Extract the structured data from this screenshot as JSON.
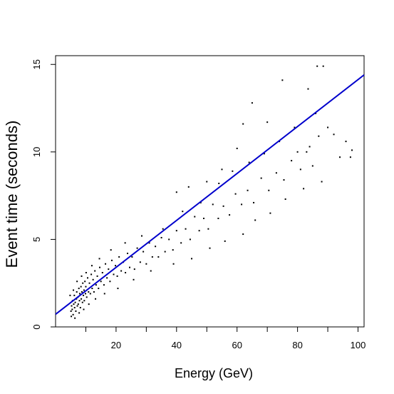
{
  "chart_data": {
    "type": "scatter",
    "title": "",
    "xlabel": "Energy (GeV)",
    "ylabel": "Event time (seconds)",
    "xlim": [
      0,
      102
    ],
    "ylim": [
      0,
      15.5
    ],
    "grid": false,
    "x_ticks": [
      20,
      40,
      60,
      80,
      100
    ],
    "x_minor_ticks": [
      10,
      30,
      50,
      70,
      90
    ],
    "y_ticks": [
      0,
      5,
      10,
      15
    ],
    "colors": {
      "points": "#000000",
      "fit_line": "#0000cc"
    },
    "fit_line": {
      "x": [
        0,
        102
      ],
      "y": [
        0.72,
        14.4
      ]
    },
    "series": [
      {
        "points": [
          [
            5.1,
            0.9
          ],
          [
            5.3,
            1.2
          ],
          [
            5.5,
            1.0
          ],
          [
            5.6,
            1.5
          ],
          [
            5.8,
            0.7
          ],
          [
            6.0,
            1.3
          ],
          [
            6.2,
            1.8
          ],
          [
            6.3,
            1.1
          ],
          [
            6.5,
            1.4
          ],
          [
            6.7,
            0.9
          ],
          [
            6.9,
            1.6
          ],
          [
            7.0,
            2.0
          ],
          [
            7.2,
            1.2
          ],
          [
            7.4,
            1.7
          ],
          [
            7.5,
            1.3
          ],
          [
            7.7,
            2.2
          ],
          [
            7.9,
            1.5
          ],
          [
            8.0,
            1.9
          ],
          [
            8.2,
            1.1
          ],
          [
            8.4,
            2.3
          ],
          [
            8.5,
            1.6
          ],
          [
            8.7,
            2.0
          ],
          [
            8.9,
            1.4
          ],
          [
            9.0,
            2.5
          ],
          [
            9.2,
            1.8
          ],
          [
            9.4,
            2.1
          ],
          [
            9.5,
            1.5
          ],
          [
            9.7,
            2.6
          ],
          [
            9.9,
            1.9
          ],
          [
            10.0,
            2.3
          ],
          [
            10.3,
            1.7
          ],
          [
            10.6,
            2.8
          ],
          [
            10.9,
            2.0
          ],
          [
            11.2,
            2.5
          ],
          [
            11.5,
            1.9
          ],
          [
            11.8,
            3.0
          ],
          [
            12.1,
            2.2
          ],
          [
            12.4,
            2.7
          ],
          [
            12.7,
            2.0
          ],
          [
            13.0,
            3.2
          ],
          [
            13.4,
            2.4
          ],
          [
            13.8,
            2.9
          ],
          [
            14.2,
            2.2
          ],
          [
            14.6,
            3.4
          ],
          [
            15.0,
            2.6
          ],
          [
            15.5,
            3.1
          ],
          [
            16.0,
            2.4
          ],
          [
            16.5,
            3.6
          ],
          [
            17.0,
            2.8
          ],
          [
            17.5,
            3.3
          ],
          [
            18.0,
            2.6
          ],
          [
            18.6,
            3.8
          ],
          [
            19.2,
            3.0
          ],
          [
            19.8,
            3.5
          ],
          [
            20.4,
            2.9
          ],
          [
            21.0,
            4.0
          ],
          [
            21.7,
            3.2
          ],
          [
            22.4,
            3.7
          ],
          [
            23.1,
            3.1
          ],
          [
            23.8,
            4.2
          ],
          [
            24.5,
            3.4
          ],
          [
            25.3,
            4.0
          ],
          [
            26.1,
            3.3
          ],
          [
            27.0,
            4.5
          ],
          [
            28.0,
            3.7
          ],
          [
            29.0,
            4.3
          ],
          [
            30.0,
            3.6
          ],
          [
            31.0,
            4.8
          ],
          [
            32.0,
            4.0
          ],
          [
            33.0,
            4.6
          ],
          [
            34.0,
            4.0
          ],
          [
            35.0,
            5.1
          ],
          [
            36.2,
            4.3
          ],
          [
            37.5,
            5.0
          ],
          [
            38.8,
            4.4
          ],
          [
            40.0,
            5.5
          ],
          [
            41.5,
            4.8
          ],
          [
            43.0,
            5.6
          ],
          [
            44.5,
            5.0
          ],
          [
            46.0,
            6.3
          ],
          [
            47.5,
            5.5
          ],
          [
            49.0,
            6.2
          ],
          [
            50.5,
            5.6
          ],
          [
            52.0,
            7.0
          ],
          [
            53.8,
            6.2
          ],
          [
            55.5,
            6.9
          ],
          [
            57.5,
            6.4
          ],
          [
            59.5,
            7.6
          ],
          [
            61.5,
            7.0
          ],
          [
            63.5,
            7.8
          ],
          [
            65.5,
            7.1
          ],
          [
            68.0,
            8.5
          ],
          [
            70.5,
            7.8
          ],
          [
            73.0,
            8.8
          ],
          [
            75.5,
            8.4
          ],
          [
            78.0,
            9.5
          ],
          [
            81.0,
            9.0
          ],
          [
            84.0,
            10.3
          ],
          [
            87.0,
            10.9
          ],
          [
            90.0,
            11.4
          ],
          [
            4.8,
            1.8
          ],
          [
            5.2,
            0.6
          ],
          [
            5.9,
            2.1
          ],
          [
            6.4,
            0.5
          ],
          [
            7.1,
            2.6
          ],
          [
            7.8,
            0.8
          ],
          [
            8.6,
            2.9
          ],
          [
            9.3,
            1.0
          ],
          [
            10.1,
            3.1
          ],
          [
            11.0,
            1.3
          ],
          [
            12.0,
            3.5
          ],
          [
            13.2,
            1.6
          ],
          [
            14.5,
            3.9
          ],
          [
            16.2,
            1.9
          ],
          [
            18.3,
            4.4
          ],
          [
            20.6,
            2.2
          ],
          [
            23.0,
            4.8
          ],
          [
            25.8,
            2.7
          ],
          [
            28.5,
            5.2
          ],
          [
            31.5,
            3.2
          ],
          [
            35.5,
            5.6
          ],
          [
            39.0,
            3.6
          ],
          [
            42.0,
            6.6
          ],
          [
            45.0,
            3.9
          ],
          [
            48.0,
            7.1
          ],
          [
            51.0,
            4.5
          ],
          [
            54.0,
            8.2
          ],
          [
            56.0,
            4.9
          ],
          [
            58.5,
            8.9
          ],
          [
            62.0,
            5.3
          ],
          [
            64.0,
            9.4
          ],
          [
            66.0,
            6.1
          ],
          [
            69.0,
            9.9
          ],
          [
            71.0,
            6.5
          ],
          [
            74.0,
            10.6
          ],
          [
            76.0,
            7.3
          ],
          [
            79.0,
            11.4
          ],
          [
            82.0,
            7.9
          ],
          [
            86.0,
            12.2
          ],
          [
            88.0,
            8.3
          ],
          [
            92.0,
            11.0
          ],
          [
            94.0,
            9.7
          ],
          [
            96.0,
            10.6
          ],
          [
            97.5,
            9.7
          ],
          [
            98.0,
            10.1
          ],
          [
            65.0,
            12.8
          ],
          [
            75.0,
            14.1
          ],
          [
            86.5,
            14.9
          ],
          [
            88.5,
            14.9
          ],
          [
            83.5,
            13.6
          ],
          [
            62.0,
            11.6
          ],
          [
            70.0,
            11.7
          ],
          [
            80.0,
            10.0
          ],
          [
            83.0,
            10.0
          ],
          [
            85.0,
            9.2
          ],
          [
            60.0,
            10.2
          ],
          [
            55.0,
            9.0
          ],
          [
            50.0,
            8.3
          ],
          [
            44.0,
            8.0
          ],
          [
            40.0,
            7.7
          ]
        ]
      }
    ]
  }
}
